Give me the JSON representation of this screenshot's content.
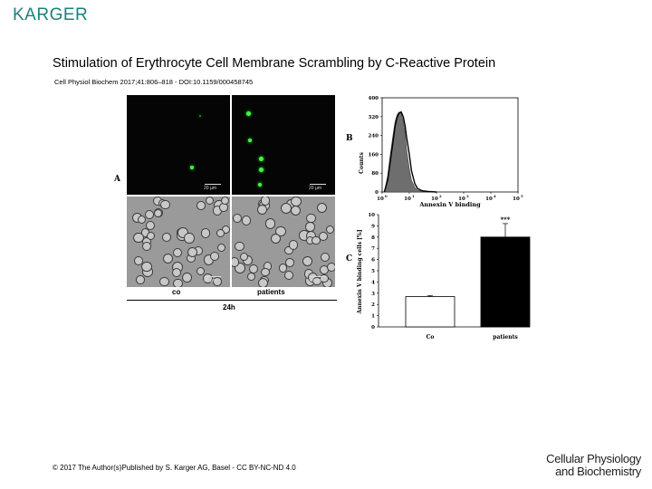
{
  "header": {
    "logo_text": "KARGER"
  },
  "slide": {
    "title": "Stimulation of Erythrocyte Cell Membrane Scrambling by C-Reactive Protein",
    "citation": "Cell Physiol Biochem 2017;41:806–818 - DOI:10.1159/000458745",
    "footer": "© 2017 The Author(s)Published by S. Karger AG, Basel - CC BY-NC-ND 4.0",
    "journal_line1": "Cellular Physiology",
    "journal_line2": "and Biochemistry"
  },
  "figure": {
    "panel_a": {
      "letter": "A",
      "scale_label": "20 µm",
      "group_labels": [
        "co",
        "patients"
      ],
      "time_label": "24h"
    },
    "panel_b": {
      "letter": "B",
      "ylabel": "Counts",
      "xlabel": "Annexin V binding",
      "yticks": [
        "0",
        "80",
        "160",
        "240",
        "320",
        "400"
      ],
      "xtick_base": "10",
      "xtick_exps": [
        "0",
        "1",
        "2",
        "3",
        "4",
        "5"
      ]
    },
    "panel_c": {
      "letter": "C",
      "ylabel": "Annexin V binding cells [%]",
      "significance": "***",
      "yticks": [
        "0",
        "1",
        "2",
        "3",
        "4",
        "5",
        "6",
        "7",
        "8",
        "9",
        "10"
      ]
    }
  },
  "chart_data": [
    {
      "type": "area",
      "panel": "B",
      "xlabel": "Annexin V binding",
      "ylabel": "Counts",
      "xscale": "log",
      "xlim": [
        1,
        100000
      ],
      "ylim": [
        0,
        400
      ],
      "series": [
        {
          "style": "filled-grey",
          "x": [
            1.2,
            1.6,
            2,
            2.5,
            3,
            3.6,
            4.2,
            5,
            6,
            7,
            8,
            10,
            12,
            16,
            20,
            30,
            50,
            100
          ],
          "y": [
            0,
            70,
            160,
            240,
            300,
            330,
            340,
            335,
            300,
            250,
            180,
            100,
            50,
            20,
            8,
            3,
            1,
            0
          ]
        },
        {
          "style": "black-line",
          "x": [
            1.2,
            1.6,
            2,
            2.5,
            3,
            3.6,
            4.2,
            5,
            6,
            7,
            8,
            10,
            12,
            16,
            20,
            30,
            50,
            100
          ],
          "y": [
            0,
            50,
            130,
            210,
            280,
            320,
            335,
            340,
            320,
            280,
            230,
            160,
            90,
            35,
            15,
            5,
            2,
            0
          ]
        }
      ]
    },
    {
      "type": "bar",
      "panel": "C",
      "categories": [
        "Co",
        "patients"
      ],
      "values": [
        2.7,
        8.0
      ],
      "errors": [
        0.1,
        1.2
      ],
      "colors": [
        "#ffffff",
        "#000000"
      ],
      "ylabel": "Annexin V binding cells [%]",
      "ylim": [
        0,
        10
      ],
      "annotations": [
        {
          "category": "patients",
          "text": "***"
        }
      ]
    }
  ]
}
